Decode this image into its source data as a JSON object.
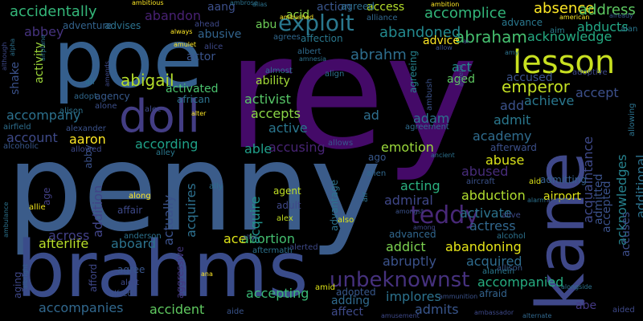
{
  "background_color": "#000000",
  "words": [
    {
      "text": "rey",
      "color": "#440a68"
    },
    {
      "text": "penny",
      "color": "#3b5c8a"
    },
    {
      "text": "brahms",
      "color": "#3a4c8a"
    },
    {
      "text": "poe",
      "color": "#355f8d"
    },
    {
      "text": "kane",
      "color": "#3f4889"
    },
    {
      "text": "doll",
      "color": "#433d84"
    },
    {
      "text": "lesson",
      "color": "#c8e020"
    },
    {
      "text": "unbeknownst",
      "color": "#46317e"
    },
    {
      "text": "exploit",
      "color": "#2a788e"
    },
    {
      "text": "teddy",
      "color": "#482878"
    },
    {
      "text": "abigail",
      "color": "#b5de2b"
    },
    {
      "text": "abrahm",
      "color": "#2e6e8e"
    },
    {
      "text": "abraham",
      "color": "#46c06f"
    },
    {
      "text": "emperor",
      "color": "#c2df23"
    },
    {
      "text": "accidentally",
      "color": "#34b679"
    },
    {
      "text": "abandoned",
      "color": "#23898e"
    },
    {
      "text": "accomplice",
      "color": "#32b67a"
    },
    {
      "text": "absence",
      "color": "#fde725"
    },
    {
      "text": "address",
      "color": "#5ec962"
    },
    {
      "text": "acknowledge",
      "color": "#25ab82"
    },
    {
      "text": "abducts",
      "color": "#22a785"
    },
    {
      "text": "acquaintance",
      "color": "#3e4989"
    },
    {
      "text": "additional",
      "color": "#2c728e"
    },
    {
      "text": "acknowledges",
      "color": "#26828e"
    },
    {
      "text": "accompanies",
      "color": "#31688e"
    },
    {
      "text": "accompanied",
      "color": "#26ad81"
    },
    {
      "text": "accident",
      "color": "#60ca60"
    },
    {
      "text": "afterlife",
      "color": "#b8de29"
    },
    {
      "text": "accepting",
      "color": "#3aba76"
    },
    {
      "text": "admits",
      "color": "#39568c"
    },
    {
      "text": "implores",
      "color": "#2c728e"
    },
    {
      "text": "abandoning",
      "color": "#e5e419"
    },
    {
      "text": "abortion",
      "color": "#44bf70"
    },
    {
      "text": "abruptly",
      "color": "#3b528b"
    },
    {
      "text": "addict",
      "color": "#7cd250"
    },
    {
      "text": "acquired",
      "color": "#2f6c8e"
    },
    {
      "text": "actress",
      "color": "#31678e"
    },
    {
      "text": "aboard",
      "color": "#2c738e"
    },
    {
      "text": "across",
      "color": "#424086"
    },
    {
      "text": "ace",
      "color": "#dde318"
    },
    {
      "text": "acquire",
      "color": "#20928c"
    },
    {
      "text": "acquires",
      "color": "#2d708e"
    },
    {
      "text": "actually",
      "color": "#3b528b"
    },
    {
      "text": "addition",
      "color": "#414487"
    },
    {
      "text": "abuse",
      "color": "#d8e219"
    },
    {
      "text": "abused",
      "color": "#472c7a"
    },
    {
      "text": "abduction",
      "color": "#b0dd2f"
    },
    {
      "text": "acting",
      "color": "#2ab07f"
    },
    {
      "text": "admiral",
      "color": "#3f4788"
    },
    {
      "text": "activate",
      "color": "#2c738e"
    },
    {
      "text": "academy",
      "color": "#2f6c8e"
    },
    {
      "text": "emotion",
      "color": "#9bd93c"
    },
    {
      "text": "accusing",
      "color": "#482475"
    },
    {
      "text": "active",
      "color": "#2a768e"
    },
    {
      "text": "able",
      "color": "#1f9e89"
    },
    {
      "text": "according",
      "color": "#1fa188"
    },
    {
      "text": "aaron",
      "color": "#fde725"
    },
    {
      "text": "account",
      "color": "#3e4a89"
    },
    {
      "text": "accompany",
      "color": "#2c718e"
    },
    {
      "text": "activist",
      "color": "#56c667"
    },
    {
      "text": "accepts",
      "color": "#8bd646"
    },
    {
      "text": "ad",
      "color": "#2e6f8e"
    },
    {
      "text": "adam",
      "color": "#2c738e"
    },
    {
      "text": "admit",
      "color": "#2a788e"
    },
    {
      "text": "add",
      "color": "#3b528b"
    },
    {
      "text": "achieve",
      "color": "#2a778e"
    },
    {
      "text": "accept",
      "color": "#3c508b"
    },
    {
      "text": "accused",
      "color": "#3b528b"
    },
    {
      "text": "act",
      "color": "#21918c"
    },
    {
      "text": "aged",
      "color": "#5ec962"
    },
    {
      "text": "advice",
      "color": "#fde725"
    },
    {
      "text": "access",
      "color": "#b5de2b"
    },
    {
      "text": "action",
      "color": "#39568c"
    },
    {
      "text": "acid",
      "color": "#8fd744"
    },
    {
      "text": "abu",
      "color": "#6ece58"
    },
    {
      "text": "abusive",
      "color": "#32648e"
    },
    {
      "text": "actor",
      "color": "#3a548c"
    },
    {
      "text": "activated",
      "color": "#4ac16d"
    },
    {
      "text": "ability",
      "color": "#a2da37"
    },
    {
      "text": "abbey",
      "color": "#46337f"
    },
    {
      "text": "shake",
      "color": "#3b528b"
    },
    {
      "text": "activity",
      "color": "#9fda3a"
    },
    {
      "text": "abandon",
      "color": "#482173"
    },
    {
      "text": "aang",
      "color": "#3c4f8a"
    },
    {
      "text": "advises",
      "color": "#2c728e"
    },
    {
      "text": "adventure",
      "color": "#33638d"
    },
    {
      "text": "agreed",
      "color": "#2e6e8e"
    },
    {
      "text": "advance",
      "color": "#2a788e"
    },
    {
      "text": "alliance",
      "color": "#31688e"
    },
    {
      "text": "aim",
      "color": "#287d8e"
    },
    {
      "text": "alan",
      "color": "#2a778e"
    },
    {
      "text": "agency",
      "color": "#375a8c"
    },
    {
      "text": "agreement",
      "color": "#2f6b8e"
    },
    {
      "text": "adoptive",
      "color": "#3e4989"
    },
    {
      "text": "afterward",
      "color": "#3c508b"
    },
    {
      "text": "afraid",
      "color": "#33638d"
    },
    {
      "text": "alamein",
      "color": "#2a788e"
    },
    {
      "text": "allison",
      "color": "#38588c"
    },
    {
      "text": "adopted",
      "color": "#38588c"
    },
    {
      "text": "adding",
      "color": "#306a8e"
    },
    {
      "text": "affect",
      "color": "#3e4a89"
    },
    {
      "text": "advanced",
      "color": "#31678e"
    },
    {
      "text": "admitted",
      "color": "#3b528b"
    },
    {
      "text": "accepted",
      "color": "#3b528b"
    },
    {
      "text": "accuses",
      "color": "#3d4e8a"
    },
    {
      "text": "abe",
      "color": "#443983"
    },
    {
      "text": "admitting",
      "color": "#35608d"
    },
    {
      "text": "airport",
      "color": "#dde318"
    },
    {
      "text": "agent",
      "color": "#c0df25"
    },
    {
      "text": "adult",
      "color": "#3f4889"
    },
    {
      "text": "advantage",
      "color": "#2c738e"
    },
    {
      "text": "ago",
      "color": "#38588c"
    },
    {
      "text": "allows",
      "color": "#39568c"
    },
    {
      "text": "allowed",
      "color": "#3e4989"
    },
    {
      "text": "affair",
      "color": "#3e4989"
    },
    {
      "text": "alexander",
      "color": "#3b528b"
    },
    {
      "text": "airfield",
      "color": "#2e6e8e"
    },
    {
      "text": "alison",
      "color": "#2c718e"
    },
    {
      "text": "adopt",
      "color": "#31688e"
    },
    {
      "text": "african",
      "color": "#2c728e"
    },
    {
      "text": "affection",
      "color": "#2a788e"
    },
    {
      "text": "albert",
      "color": "#2f6b8e"
    },
    {
      "text": "almost",
      "color": "#2d708e"
    },
    {
      "text": "align",
      "color": "#2c728e"
    },
    {
      "text": "agreeing",
      "color": "#26828e"
    },
    {
      "text": "alone",
      "color": "#3c4f8a"
    },
    {
      "text": "alec",
      "color": "#3e4a89"
    },
    {
      "text": "aide",
      "color": "#3a548c"
    },
    {
      "text": "alfred",
      "color": "#3b528b"
    },
    {
      "text": "alert",
      "color": "#3e4989"
    },
    {
      "text": "afford",
      "color": "#3f4889"
    },
    {
      "text": "agree",
      "color": "#39568c"
    },
    {
      "text": "aggressive",
      "color": "#453781"
    },
    {
      "text": "aging",
      "color": "#3f4889"
    },
    {
      "text": "allie",
      "color": "#f1e51d"
    },
    {
      "text": "age",
      "color": "#424086"
    },
    {
      "text": "aid",
      "color": "#dde318"
    },
    {
      "text": "alive",
      "color": "#3e4989"
    },
    {
      "text": "alcohol",
      "color": "#2c728e"
    },
    {
      "text": "also",
      "color": "#dde318"
    },
    {
      "text": "alex",
      "color": "#c2df23"
    },
    {
      "text": "alien",
      "color": "#31688e"
    },
    {
      "text": "along",
      "color": "#fde725"
    },
    {
      "text": "amid",
      "color": "#dde318"
    },
    {
      "text": "alerted",
      "color": "#3e4989"
    },
    {
      "text": "aftermath",
      "color": "#2c728e"
    },
    {
      "text": "anderson",
      "color": "#2c718e"
    },
    {
      "text": "alarm",
      "color": "#2c718e"
    },
    {
      "text": "andrea",
      "color": "#3b528b"
    },
    {
      "text": "aircraft",
      "color": "#3b528b"
    },
    {
      "text": "alley",
      "color": "#2a788e"
    },
    {
      "text": "ally",
      "color": "#2e6e8e"
    },
    {
      "text": "alter",
      "color": "#fde725"
    },
    {
      "text": "alice",
      "color": "#3e4989"
    },
    {
      "text": "ahead",
      "color": "#3e4989"
    },
    {
      "text": "agrees",
      "color": "#31688e"
    },
    {
      "text": "ambush",
      "color": "#3b528b"
    },
    {
      "text": "ambushed",
      "color": "#fde725"
    },
    {
      "text": "ambitious",
      "color": "#fde725"
    },
    {
      "text": "ambrose",
      "color": "#2c728e"
    },
    {
      "text": "alias",
      "color": "#2c728e"
    },
    {
      "text": "ambition",
      "color": "#fde725"
    },
    {
      "text": "american",
      "color": "#fde725"
    },
    {
      "text": "already",
      "color": "#38588c"
    },
    {
      "text": "amy",
      "color": "#2c728e"
    },
    {
      "text": "allowing",
      "color": "#2c728e"
    },
    {
      "text": "alongside",
      "color": "#2c718e"
    },
    {
      "text": "ambulance",
      "color": "#2c728e"
    },
    {
      "text": "albright",
      "color": "#35608d"
    },
    {
      "text": "altar",
      "color": "#3e4989"
    },
    {
      "text": "amongst",
      "color": "#3b528b"
    },
    {
      "text": "among",
      "color": "#3e4989"
    },
    {
      "text": "amnesia",
      "color": "#2c718e"
    },
    {
      "text": "amulet",
      "color": "#fde725"
    },
    {
      "text": "always",
      "color": "#fde725"
    },
    {
      "text": "ancient",
      "color": "#2c718e"
    },
    {
      "text": "air",
      "color": "#2c728e"
    },
    {
      "text": "ana",
      "color": "#fde725"
    },
    {
      "text": "ammunition",
      "color": "#3b528b"
    },
    {
      "text": "amusement",
      "color": "#3e4989"
    },
    {
      "text": "ambassador",
      "color": "#3e4989"
    },
    {
      "text": "alternate",
      "color": "#31688e"
    },
    {
      "text": "aided",
      "color": "#3e4989"
    },
    {
      "text": "alcoholic",
      "color": "#38588c"
    },
    {
      "text": "alpha",
      "color": "#2c718e"
    },
    {
      "text": "although",
      "color": "#3e4989"
    },
    {
      "text": "airplane",
      "color": "#2c718e"
    },
    {
      "text": "allow",
      "color": "#3b528b"
    },
    {
      "text": "al",
      "color": "#3e4989"
    },
    {
      "text": "ali",
      "color": "#2c718e"
    },
    {
      "text": "amends",
      "color": "#3e4989"
    },
    {
      "text": "amend",
      "color": "#3b528b"
    },
    {
      "text": "abby",
      "color": "#3b528b"
    }
  ]
}
